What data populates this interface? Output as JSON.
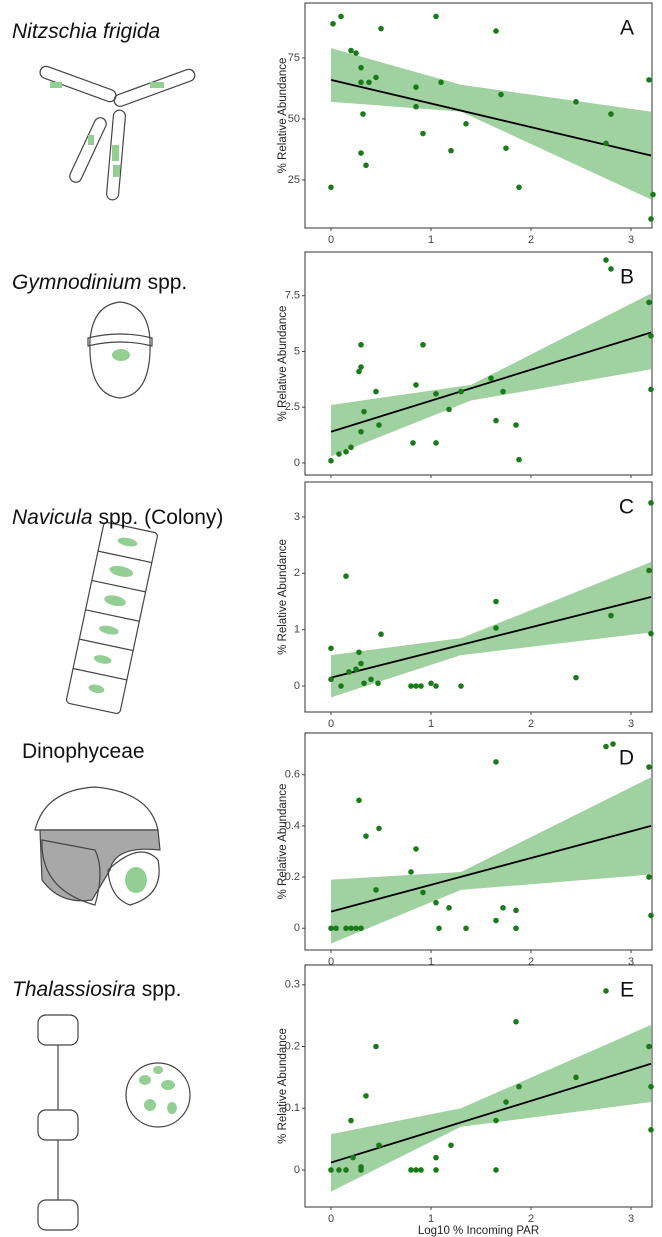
{
  "chart_data": [
    {
      "type": "scatter",
      "species": [
        {
          "text": "Nitzschia frigida",
          "italic": true
        }
      ],
      "panel": "A",
      "ylabel": "% Relative Abundance",
      "xlim": [
        -0.26,
        3.21
      ],
      "xticks": [
        0,
        1,
        2,
        3
      ],
      "ylim": [
        5.3,
        97.5
      ],
      "yticks": [
        25,
        50,
        75
      ],
      "color": "#1a7a1a",
      "x": [
        0.02,
        0.1,
        0.2,
        0.25,
        0.3,
        0.3,
        0.32,
        0.3,
        0.35,
        0,
        0.5,
        0.45,
        0.38,
        0.85,
        0.85,
        0.92,
        1.05,
        1.1,
        1.2,
        1.35,
        1.65,
        1.7,
        1.75,
        1.88,
        2.45,
        2.75,
        2.8,
        3.18,
        3.22,
        3.2
      ],
      "values": [
        89,
        92,
        78,
        77,
        71,
        65,
        52,
        36,
        31,
        22,
        87,
        67,
        65,
        63,
        55,
        44,
        92,
        65,
        37,
        48,
        86,
        60,
        38,
        22,
        57,
        40,
        52,
        66,
        19,
        9
      ],
      "fit": {
        "x": [
          0,
          3.2
        ],
        "y": [
          66,
          35
        ]
      },
      "band": {
        "x": [
          0,
          1.3,
          3.2
        ],
        "lower": [
          57,
          53,
          17
        ],
        "upper": [
          79,
          64,
          53
        ]
      }
    },
    {
      "type": "scatter",
      "species": [
        {
          "text": "Gymnodinium",
          "italic": true
        },
        {
          "text": "spp.",
          "italic": false
        }
      ],
      "panel": "B",
      "ylabel": "% Relative Abundance",
      "xlim": [
        -0.26,
        3.21
      ],
      "xticks": [
        0,
        1,
        2,
        3
      ],
      "ylim": [
        -0.54,
        9.46
      ],
      "yticks": [
        0,
        2.5,
        5,
        7.5
      ],
      "color": "#1a7a1a",
      "x": [
        0,
        0.08,
        0.15,
        0.2,
        0.28,
        0.3,
        0.3,
        0.33,
        0.3,
        0.45,
        0.48,
        0.85,
        0.82,
        0.92,
        1.05,
        1.05,
        1.18,
        1.3,
        1.6,
        1.65,
        1.72,
        1.85,
        1.88,
        2.75,
        2.8,
        3.18,
        3.2,
        3.2
      ],
      "values": [
        0.1,
        0.4,
        0.5,
        0.7,
        4.1,
        4.3,
        5.3,
        2.3,
        1.4,
        3.2,
        1.7,
        3.5,
        0.9,
        5.3,
        3.1,
        0.9,
        2.4,
        3.2,
        3.8,
        1.9,
        3.2,
        1.7,
        0.15,
        9.1,
        8.7,
        7.2,
        5.7,
        3.3
      ],
      "fit": {
        "x": [
          0,
          3.2
        ],
        "y": [
          1.4,
          5.85
        ]
      },
      "band": {
        "x": [
          0,
          1.4,
          3.2
        ],
        "lower": [
          0.3,
          2.8,
          4.2
        ],
        "upper": [
          2.6,
          3.5,
          7.6
        ]
      }
    },
    {
      "type": "scatter",
      "species": [
        {
          "text": "Navicula",
          "italic": true
        },
        {
          "text": "spp. (Colony)",
          "italic": false
        }
      ],
      "panel": "C",
      "ylabel": "% Relative Abundance",
      "xlim": [
        -0.26,
        3.21
      ],
      "xticks": [
        0,
        1,
        2,
        3
      ],
      "ylim": [
        -0.46,
        3.62
      ],
      "yticks": [
        0,
        1,
        2,
        3
      ],
      "color": "#1a7a1a",
      "x": [
        0,
        0,
        0.1,
        0.15,
        0.18,
        0.25,
        0.28,
        0.3,
        0.33,
        0.4,
        0.47,
        0.5,
        0.8,
        0.85,
        0.9,
        1,
        1.05,
        1.3,
        1.65,
        1.65,
        2.45,
        2.8,
        3.18,
        3.2,
        3.2
      ],
      "values": [
        0.67,
        0.12,
        0,
        1.95,
        0.25,
        0.3,
        0.6,
        0.4,
        0.05,
        0.12,
        0.05,
        0.92,
        0,
        0,
        0,
        0.05,
        0,
        0,
        1.5,
        1.03,
        0.15,
        1.25,
        2.05,
        0.93,
        3.25
      ],
      "fit": {
        "x": [
          0,
          3.2
        ],
        "y": [
          0.15,
          1.58
        ]
      },
      "band": {
        "x": [
          0,
          1.3,
          3.2
        ],
        "lower": [
          -0.2,
          0.55,
          0.95
        ],
        "upper": [
          0.55,
          0.85,
          2.2
        ]
      }
    },
    {
      "type": "scatter",
      "species": [
        {
          "text": "Dinophyceae",
          "italic": false
        }
      ],
      "panel": "D",
      "ylabel": "% Relative Abundance",
      "xlim": [
        -0.26,
        3.21
      ],
      "xticks": [
        0,
        1,
        2,
        3
      ],
      "ylim": [
        -0.085,
        0.763
      ],
      "yticks": [
        0,
        0.2,
        0.4,
        0.6
      ],
      "color": "#1a7a1a",
      "x": [
        0,
        0.05,
        0.15,
        0.2,
        0.25,
        0.3,
        0.28,
        0.35,
        0.45,
        0.48,
        0.85,
        0.8,
        0.92,
        1.05,
        1.08,
        1.18,
        1.35,
        1.65,
        1.65,
        1.72,
        1.85,
        1.85,
        2.75,
        2.82,
        3.18,
        3.18,
        3.2
      ],
      "values": [
        0,
        0,
        0,
        0,
        0,
        0,
        0.5,
        0.36,
        0.15,
        0.39,
        0.31,
        0.22,
        0.14,
        0.1,
        0,
        0.08,
        0,
        0.65,
        0.03,
        0.08,
        0.07,
        0,
        0.71,
        0.72,
        0.63,
        0.2,
        0.05
      ],
      "fit": {
        "x": [
          0,
          3.2
        ],
        "y": [
          0.065,
          0.4
        ]
      },
      "band": {
        "x": [
          0,
          1.3,
          3.2
        ],
        "lower": [
          -0.06,
          0.15,
          0.21
        ],
        "upper": [
          0.19,
          0.22,
          0.59
        ]
      }
    },
    {
      "type": "scatter",
      "species": [
        {
          "text": "Thalassiosira",
          "italic": true
        },
        {
          "text": "spp.",
          "italic": false
        }
      ],
      "panel": "E",
      "ylabel": "% Relative Abundance",
      "xlabel": "Log10 % Incoming PAR",
      "xlim": [
        -0.26,
        3.21
      ],
      "xticks": [
        0,
        1,
        2,
        3
      ],
      "ylim": [
        -0.06,
        0.332
      ],
      "yticks": [
        0,
        0.1,
        0.2,
        0.3
      ],
      "color": "#1a7a1a",
      "x": [
        0,
        0.08,
        0.15,
        0.2,
        0.22,
        0.3,
        0.3,
        0.35,
        0.45,
        0.48,
        0.8,
        0.85,
        0.9,
        1.05,
        1.05,
        1.2,
        1.65,
        1.65,
        1.75,
        1.85,
        1.88,
        2.45,
        2.75,
        3.18,
        3.2,
        3.2
      ],
      "values": [
        0,
        0,
        0,
        0.08,
        0.02,
        0,
        0.005,
        0.12,
        0.2,
        0.04,
        0,
        0,
        0,
        0.02,
        0,
        0.04,
        0,
        0.08,
        0.11,
        0.24,
        0.135,
        0.15,
        0.29,
        0.2,
        0.135,
        0.065
      ],
      "fit": {
        "x": [
          0,
          3.2
        ],
        "y": [
          0.012,
          0.172
        ]
      },
      "band": {
        "x": [
          0,
          1.3,
          3.2
        ],
        "lower": [
          -0.035,
          0.07,
          0.11
        ],
        "upper": [
          0.058,
          0.1,
          0.235
        ]
      }
    }
  ]
}
